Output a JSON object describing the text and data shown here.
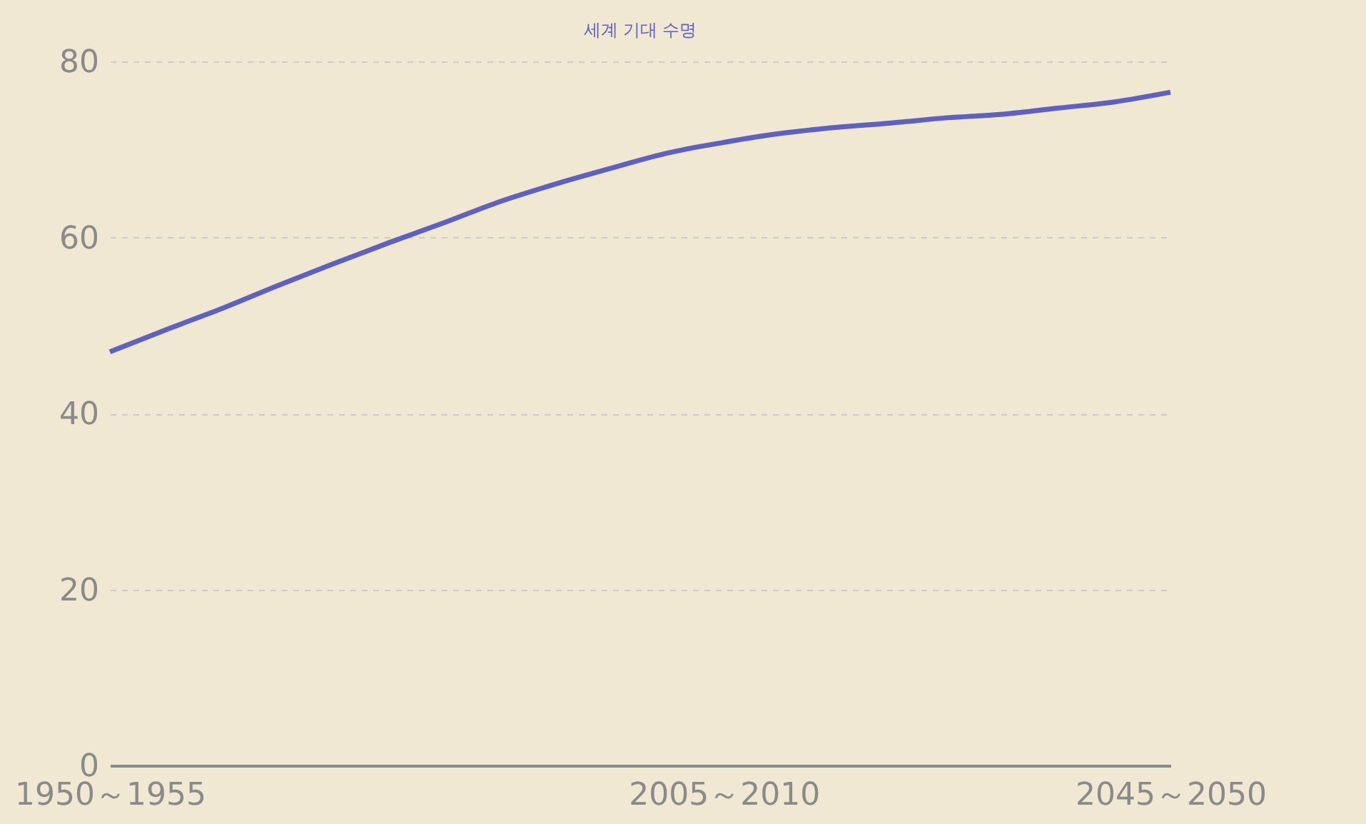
{
  "chart_data": {
    "type": "line",
    "title": "세계 기대 수명",
    "categories": [
      "1950～1955",
      null,
      null,
      null,
      null,
      null,
      null,
      null,
      null,
      null,
      null,
      "2005～2010",
      null,
      null,
      null,
      null,
      null,
      null,
      null,
      "2045～2050"
    ],
    "series": [
      {
        "color": "#6060c0",
        "values": [
          47.0,
          49.5,
          51.9,
          54.5,
          57.0,
          59.4,
          61.7,
          64.1,
          66.1,
          67.9,
          69.6,
          70.8,
          71.8,
          72.5,
          73.0,
          73.6,
          74.0,
          74.7,
          75.4,
          76.5
        ]
      }
    ],
    "ylim": [
      0,
      80
    ],
    "yticks": [
      0,
      20,
      40,
      60,
      80
    ],
    "grid": "y",
    "line_style": "solid",
    "marker": "none"
  }
}
